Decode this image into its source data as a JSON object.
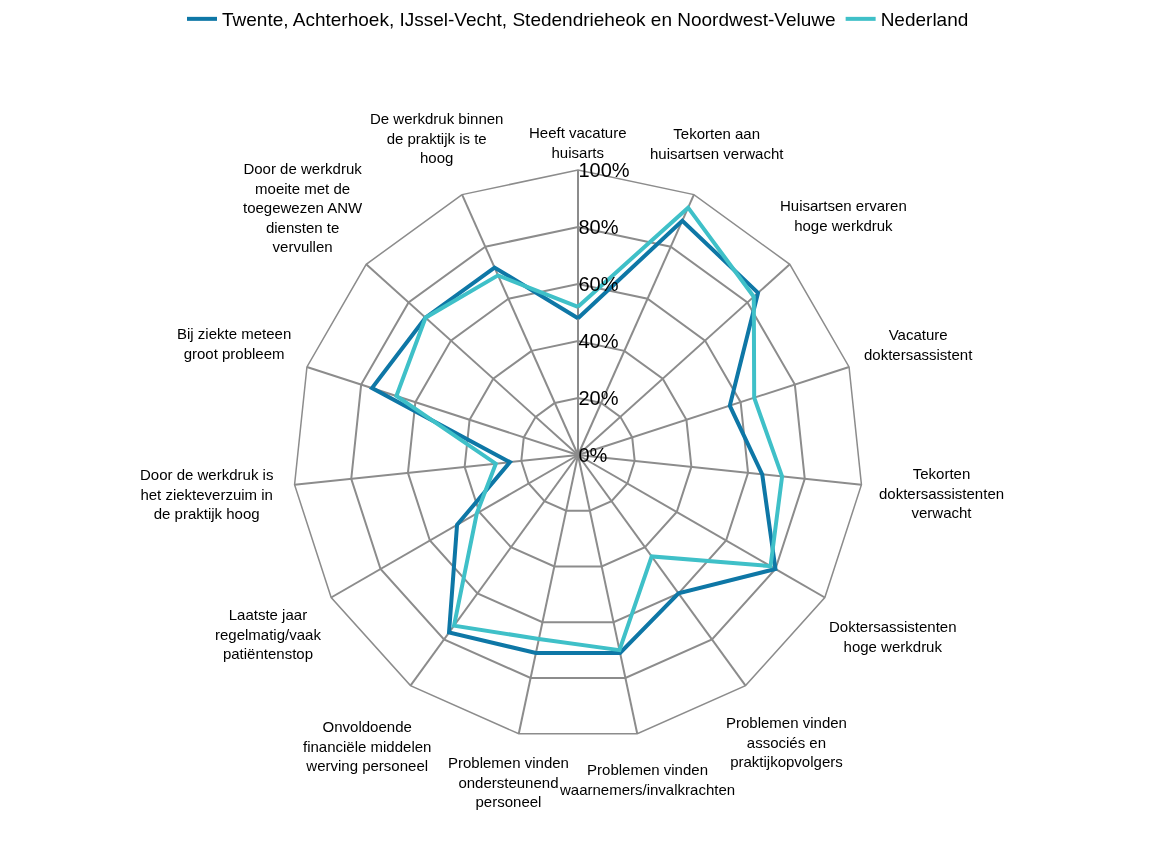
{
  "chart_data": {
    "type": "radar",
    "categories": [
      "Heeft vacature huisarts",
      "Tekorten aan huisartsen verwacht",
      "Huisartsen ervaren hoge werkdruk",
      "Vacature doktersassistent",
      "Tekorten doktersassistenten verwacht",
      "Doktersassistenten hoge werkdruk",
      "Problemen vinden associés en praktijkopvolgers",
      "Problemen vinden waarnemers/invalkrachten",
      "Problemen vinden ondersteunend personeel",
      "Onvoldoende financiële middelen werving personeel",
      "Laatste jaar regelmatig/vaak patiëntenstop",
      "Door de werkdruk is het ziekteverzuim in de praktijk hoog",
      "Bij ziekte meteen groot probleem",
      "Door de werkdruk moeite met de toegewezen ANW diensten te vervullen",
      "De werkdruk binnen de praktijk is te hoog"
    ],
    "series": [
      {
        "name": "Twente, Achterhoek, IJssel-Vecht, Stedendrieheok en Noordwest-Veluwe",
        "color": "#0e77a6",
        "values": [
          48,
          90,
          85,
          56,
          65,
          80,
          60,
          71,
          71,
          77,
          49,
          24,
          76,
          72,
          72
        ]
      },
      {
        "name": "Nederland",
        "color": "#3fc0c8",
        "values": [
          52,
          95,
          83,
          65,
          72,
          78,
          44,
          70,
          66,
          74,
          41,
          29,
          67,
          72,
          69
        ]
      }
    ],
    "ylim": [
      0,
      100
    ],
    "yticks": [
      {
        "value": 0,
        "label": "0%"
      },
      {
        "value": 20,
        "label": "20%"
      },
      {
        "value": 40,
        "label": "40%"
      },
      {
        "value": 60,
        "label": "60%"
      },
      {
        "value": 80,
        "label": "80%"
      },
      {
        "value": 100,
        "label": "100%"
      }
    ],
    "legend": "top",
    "marker": "none",
    "line_style": "solid",
    "grid": true
  }
}
